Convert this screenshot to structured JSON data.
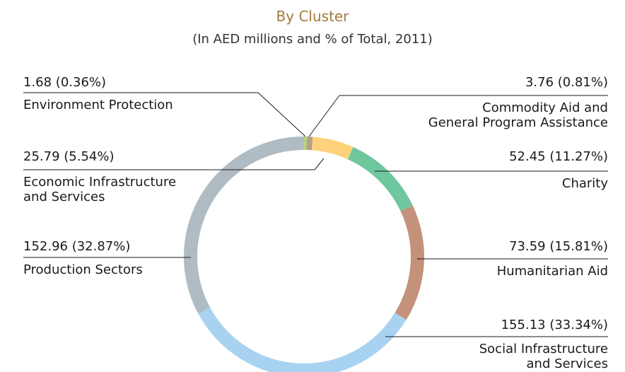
{
  "chart_data": {
    "type": "donut",
    "title": "By Cluster",
    "subtitle": "(In AED millions and % of Total, 2011)",
    "categories": [
      "Environment Protection",
      "Commodity Aid and\nGeneral Program Assistance",
      "Economic Infrastructure\nand Services",
      "Charity",
      "Humanitarian Aid",
      "Social Infrastructure\nand Services",
      "Production Sectors"
    ],
    "values": [
      1.68,
      3.76,
      25.79,
      52.45,
      73.59,
      155.13,
      152.96
    ],
    "value_labels": [
      "1.68 (0.36%)",
      "3.76 (0.81%)",
      "25.79 (5.54%)",
      "52.45 (11.27%)",
      "73.59 (15.81%)",
      "155.13 (33.34%)",
      "152.96 (32.87%)"
    ],
    "colors": [
      "#b5d77a",
      "#b7a08a",
      "#fdd27a",
      "#6fc79e",
      "#c4917a",
      "#a8d3f0",
      "#b0bcc3"
    ]
  }
}
